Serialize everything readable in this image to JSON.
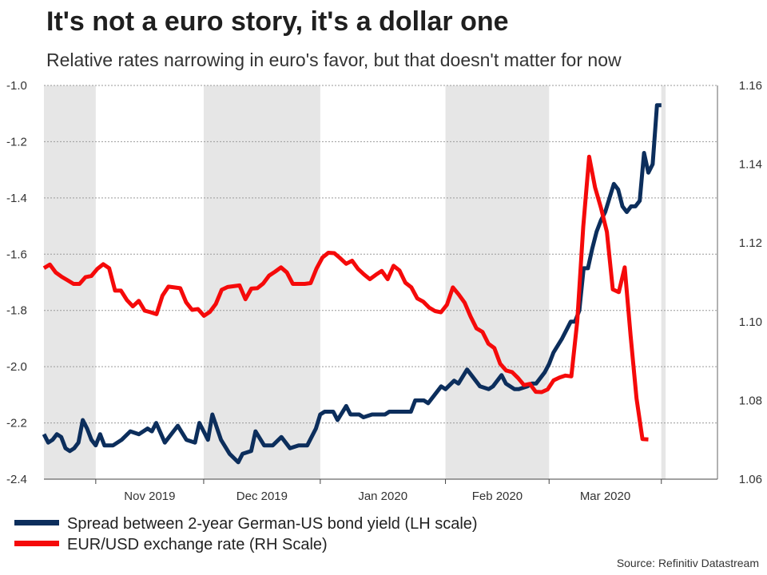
{
  "title": "It's not a euro story, it's a dollar one",
  "subtitle": "Relative rates narrowing in euro's favor, but that doesn't matter for now",
  "source": "Source: Refinitiv Datastream",
  "chart_data": {
    "type": "line",
    "months": [
      "Nov 2019",
      "Dec 2019",
      "Jan 2020",
      "Feb 2020",
      "Mar 2020"
    ],
    "shaded_periods": [
      [
        0,
        12
      ],
      [
        37,
        64
      ],
      [
        93,
        117
      ],
      [
        143,
        144
      ]
    ],
    "month_boundaries": [
      12,
      37,
      64,
      93,
      117,
      143
    ],
    "y_left": {
      "min": -2.4,
      "max": -1.0,
      "ticks": [
        "-1.0",
        "-1.2",
        "-1.4",
        "-1.6",
        "-1.8",
        "-2.0",
        "-2.2",
        "-2.4"
      ]
    },
    "y_right": {
      "min": 1.06,
      "max": 1.16,
      "ticks": [
        "1.16",
        "1.14",
        "1.12",
        "1.10",
        "1.08",
        "1.06"
      ]
    },
    "series": [
      {
        "name": "Spread between 2-year German-US bond yield (LH scale)",
        "axis": "left",
        "color": "#0c2e5c",
        "points": [
          [
            0,
            -2.24
          ],
          [
            1,
            -2.27
          ],
          [
            2,
            -2.26
          ],
          [
            3,
            -2.24
          ],
          [
            4,
            -2.25
          ],
          [
            5,
            -2.29
          ],
          [
            6,
            -2.3
          ],
          [
            7,
            -2.29
          ],
          [
            8,
            -2.27
          ],
          [
            9,
            -2.19
          ],
          [
            10,
            -2.22
          ],
          [
            11,
            -2.26
          ],
          [
            12,
            -2.28
          ],
          [
            13,
            -2.24
          ],
          [
            14,
            -2.28
          ],
          [
            16,
            -2.28
          ],
          [
            18,
            -2.26
          ],
          [
            20,
            -2.23
          ],
          [
            22,
            -2.24
          ],
          [
            24,
            -2.22
          ],
          [
            25,
            -2.23
          ],
          [
            26,
            -2.2
          ],
          [
            28,
            -2.27
          ],
          [
            30,
            -2.23
          ],
          [
            31,
            -2.21
          ],
          [
            33,
            -2.26
          ],
          [
            35,
            -2.27
          ],
          [
            36,
            -2.2
          ],
          [
            37,
            -2.23
          ],
          [
            38,
            -2.26
          ],
          [
            39,
            -2.17
          ],
          [
            41,
            -2.26
          ],
          [
            43,
            -2.31
          ],
          [
            45,
            -2.34
          ],
          [
            46,
            -2.31
          ],
          [
            48,
            -2.3
          ],
          [
            49,
            -2.23
          ],
          [
            51,
            -2.28
          ],
          [
            53,
            -2.28
          ],
          [
            55,
            -2.25
          ],
          [
            57,
            -2.29
          ],
          [
            59,
            -2.28
          ],
          [
            61,
            -2.28
          ],
          [
            63,
            -2.22
          ],
          [
            64,
            -2.17
          ],
          [
            65,
            -2.16
          ],
          [
            67,
            -2.16
          ],
          [
            68,
            -2.19
          ],
          [
            70,
            -2.14
          ],
          [
            71,
            -2.17
          ],
          [
            73,
            -2.17
          ],
          [
            74,
            -2.18
          ],
          [
            76,
            -2.17
          ],
          [
            77,
            -2.17
          ],
          [
            79,
            -2.17
          ],
          [
            80,
            -2.16
          ],
          [
            82,
            -2.16
          ],
          [
            83,
            -2.16
          ],
          [
            85,
            -2.16
          ],
          [
            86,
            -2.12
          ],
          [
            88,
            -2.12
          ],
          [
            89,
            -2.13
          ],
          [
            91,
            -2.09
          ],
          [
            92,
            -2.07
          ],
          [
            93,
            -2.08
          ],
          [
            95,
            -2.05
          ],
          [
            96,
            -2.06
          ],
          [
            98,
            -2.01
          ],
          [
            99,
            -2.03
          ],
          [
            101,
            -2.07
          ],
          [
            103,
            -2.08
          ],
          [
            104,
            -2.07
          ],
          [
            106,
            -2.03
          ],
          [
            107,
            -2.06
          ],
          [
            109,
            -2.08
          ],
          [
            110,
            -2.08
          ],
          [
            112,
            -2.07
          ],
          [
            113,
            -2.06
          ],
          [
            114,
            -2.06
          ],
          [
            116,
            -2.02
          ],
          [
            117,
            -1.99
          ],
          [
            118,
            -1.95
          ],
          [
            120,
            -1.9
          ],
          [
            122,
            -1.84
          ],
          [
            123,
            -1.84
          ],
          [
            124,
            -1.8
          ],
          [
            125,
            -1.65
          ],
          [
            126,
            -1.65
          ],
          [
            127,
            -1.58
          ],
          [
            128,
            -1.52
          ],
          [
            129,
            -1.48
          ],
          [
            130,
            -1.45
          ],
          [
            131,
            -1.4
          ],
          [
            132,
            -1.35
          ],
          [
            133,
            -1.37
          ],
          [
            134,
            -1.43
          ],
          [
            135,
            -1.45
          ],
          [
            136,
            -1.43
          ],
          [
            137,
            -1.43
          ],
          [
            138,
            -1.41
          ],
          [
            139,
            -1.24
          ],
          [
            140,
            -1.31
          ],
          [
            141,
            -1.28
          ],
          [
            142,
            -1.07
          ],
          [
            143,
            -1.07
          ]
        ]
      },
      {
        "name": "EUR/USD exchange rate (RH Scale)",
        "axis": "right",
        "color": "#f50a0a",
        "points": [
          [
            0,
            1.1136
          ],
          [
            1,
            1.1145
          ],
          [
            2,
            1.1125
          ],
          [
            3,
            1.1114
          ],
          [
            4,
            1.1105
          ],
          [
            5,
            1.1096
          ],
          [
            6,
            1.1096
          ],
          [
            7,
            1.1113
          ],
          [
            8,
            1.1116
          ],
          [
            9,
            1.1134
          ],
          [
            10,
            1.1146
          ],
          [
            11,
            1.1136
          ],
          [
            12,
            1.1079
          ],
          [
            13,
            1.1079
          ],
          [
            14,
            1.1055
          ],
          [
            15,
            1.1039
          ],
          [
            16,
            1.1053
          ],
          [
            17,
            1.1028
          ],
          [
            18,
            1.1024
          ],
          [
            19,
            1.1019
          ],
          [
            20,
            1.1066
          ],
          [
            21,
            1.1089
          ],
          [
            22,
            1.1087
          ],
          [
            23,
            1.1085
          ],
          [
            24,
            1.1049
          ],
          [
            25,
            1.103
          ],
          [
            26,
            1.1032
          ],
          [
            27,
            1.1015
          ],
          [
            28,
            1.1025
          ],
          [
            29,
            1.1045
          ],
          [
            30,
            1.1081
          ],
          [
            31,
            1.1088
          ],
          [
            32,
            1.109
          ],
          [
            33,
            1.1092
          ],
          [
            34,
            1.1057
          ],
          [
            35,
            1.1084
          ],
          [
            36,
            1.1085
          ],
          [
            37,
            1.1097
          ],
          [
            38,
            1.1117
          ],
          [
            39,
            1.1127
          ],
          [
            40,
            1.1138
          ],
          [
            41,
            1.1125
          ],
          [
            42,
            1.1096
          ],
          [
            43,
            1.1096
          ],
          [
            44,
            1.1096
          ],
          [
            45,
            1.1098
          ],
          [
            46,
            1.1135
          ],
          [
            47,
            1.1163
          ],
          [
            48,
            1.1175
          ],
          [
            49,
            1.1174
          ],
          [
            50,
            1.1161
          ],
          [
            51,
            1.1147
          ],
          [
            52,
            1.1155
          ],
          [
            53,
            1.1134
          ],
          [
            54,
            1.112
          ],
          [
            55,
            1.1108
          ],
          [
            56,
            1.1119
          ],
          [
            57,
            1.1129
          ],
          [
            58,
            1.1108
          ],
          [
            59,
            1.1142
          ],
          [
            60,
            1.113
          ],
          [
            61,
            1.1099
          ],
          [
            62,
            1.1087
          ],
          [
            63,
            1.1059
          ],
          [
            64,
            1.1051
          ],
          [
            65,
            1.1036
          ],
          [
            66,
            1.1027
          ],
          [
            67,
            1.1024
          ],
          [
            68,
            1.1043
          ],
          [
            69,
            1.1087
          ],
          [
            70,
            1.1069
          ],
          [
            71,
            1.1048
          ],
          [
            72,
            1.1013
          ],
          [
            73,
            1.0983
          ],
          [
            74,
            1.0974
          ],
          [
            75,
            1.0944
          ],
          [
            76,
            1.0933
          ],
          [
            77,
            1.0893
          ],
          [
            78,
            1.0876
          ],
          [
            79,
            1.0872
          ],
          [
            80,
            1.0857
          ],
          [
            81,
            1.0839
          ],
          [
            82,
            1.0842
          ],
          [
            83,
            1.0822
          ],
          [
            84,
            1.0821
          ],
          [
            85,
            1.0828
          ],
          [
            86,
            1.0851
          ],
          [
            87,
            1.0858
          ],
          [
            88,
            1.0863
          ],
          [
            89,
            1.0861
          ],
          [
            90,
            1.1001
          ],
          [
            91,
            1.1241
          ],
          [
            92,
            1.1419
          ],
          [
            93,
            1.1341
          ],
          [
            94,
            1.1289
          ],
          [
            95,
            1.1228
          ],
          [
            96,
            1.1082
          ],
          [
            97,
            1.1075
          ],
          [
            98,
            1.1138
          ],
          [
            99,
            1.0964
          ],
          [
            100,
            1.0805
          ],
          [
            101,
            1.0702
          ],
          [
            102,
            1.0701
          ]
        ]
      }
    ],
    "eur_x_map": {
      "note": "EUR series uses its own index scale mapped onto the shared time axis",
      "src": [
        0,
        102
      ],
      "dst": [
        0,
        140
      ]
    }
  }
}
